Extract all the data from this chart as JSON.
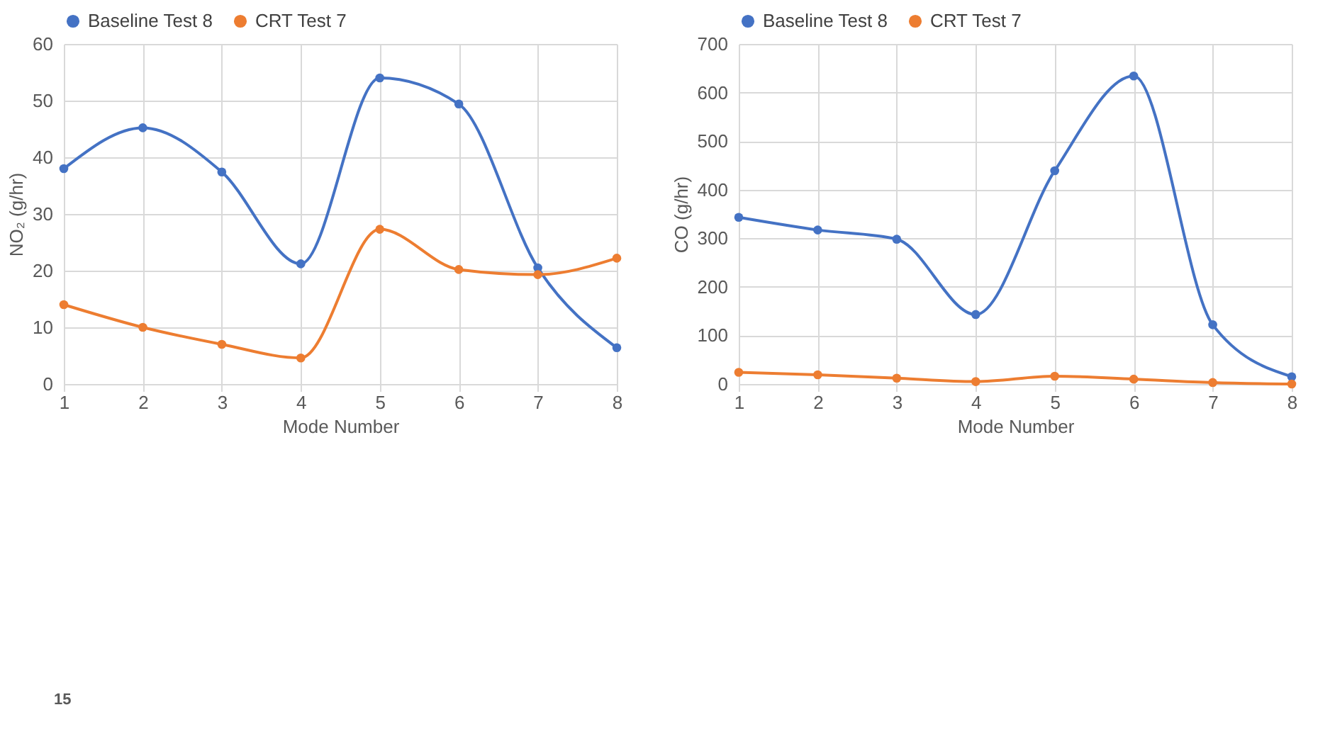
{
  "chart_data": [
    {
      "type": "line",
      "xlabel": "Mode Number",
      "ylabel": "NO₂ (g/hr)",
      "x": [
        1,
        2,
        3,
        4,
        5,
        6,
        7,
        8
      ],
      "xlim": [
        1,
        8
      ],
      "xticks": [
        1,
        2,
        3,
        4,
        5,
        6,
        7,
        8
      ],
      "ylim": [
        0,
        60
      ],
      "yticks": [
        0,
        10,
        20,
        30,
        40,
        50,
        60
      ],
      "grid": true,
      "legend": "top",
      "marker": "circle",
      "annotations": [
        "15"
      ],
      "series": [
        {
          "name": "Baseline Test 8",
          "color": "#4472c4",
          "values": [
            38,
            45.2,
            37.4,
            21.2,
            54,
            49.4,
            20.5,
            6.4
          ]
        },
        {
          "name": "CRT Test 7",
          "color": "#ed7d31",
          "values": [
            14,
            10,
            7,
            4.6,
            27.3,
            20.2,
            19.3,
            22.2
          ]
        }
      ]
    },
    {
      "type": "line",
      "xlabel": "Mode Number",
      "ylabel": "CO (g/hr)",
      "x": [
        1,
        2,
        3,
        4,
        5,
        6,
        7,
        8
      ],
      "xlim": [
        1,
        8
      ],
      "xticks": [
        1,
        2,
        3,
        4,
        5,
        6,
        7,
        8
      ],
      "ylim": [
        0,
        700
      ],
      "yticks": [
        0,
        100,
        200,
        300,
        400,
        500,
        600,
        700
      ],
      "grid": true,
      "legend": "top",
      "marker": "circle",
      "series": [
        {
          "name": "Baseline Test 8",
          "color": "#4472c4",
          "values": [
            343,
            317,
            298,
            143,
            439,
            634,
            122,
            15
          ]
        },
        {
          "name": "CRT Test 7",
          "color": "#ed7d31",
          "values": [
            24,
            19,
            12,
            5,
            16,
            10,
            3,
            0
          ]
        }
      ]
    }
  ]
}
